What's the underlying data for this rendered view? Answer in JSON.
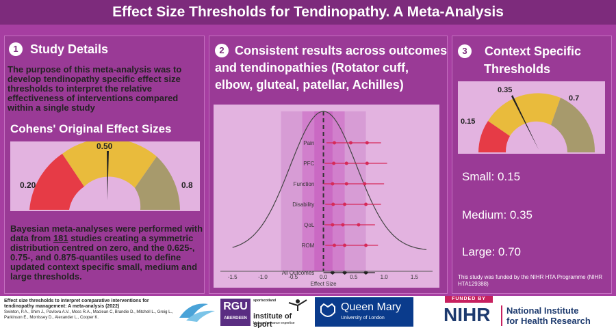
{
  "header": {
    "title": "Effect Size Thresholds for Tendinopathy. A Meta-Analysis"
  },
  "panel1": {
    "number": "1",
    "title": "Study Details",
    "intro": "The purpose of this meta-analysis was to develop tendinopathy specific effect size thresholds to interpret the relative effectiveness of interventions compared within a single study",
    "subtitle": "Cohens' Original Effect Sizes",
    "gauge": {
      "small": "0.20",
      "medium": "0.50",
      "large": "0.8",
      "needle_value": 0.5
    },
    "methods_part1": "Bayesian meta-analyses were performed with data from",
    "methods_count": "181",
    "methods_part2": "studies creating a symmetric distribution centred on zero, and the 0.625-, 0.75-, and 0.875-quantiles used to define updated context specific small, medium and large thresholds."
  },
  "panel2": {
    "number": "2",
    "title_line1": "Consistent results across outcomes",
    "title_line2": "and tendinopathies (Rotator cuff,",
    "title_line3": "elbow, gluteal, patellar, Achilles)"
  },
  "chart_data": {
    "type": "forest",
    "xlabel": "Effect Size",
    "xlim": [
      -1.7,
      1.8
    ],
    "xticks": [
      "-1.5",
      "-1.0",
      "-0.5",
      "0.0",
      "0.5",
      "1.0",
      "1.5"
    ],
    "shaded_bands": [
      [
        -0.7,
        0.7
      ],
      [
        -0.35,
        0.35
      ],
      [
        -0.15,
        0.15
      ]
    ],
    "threshold_line": 0,
    "rows": [
      {
        "label": "Pain",
        "points": [
          0.18,
          0.45,
          0.72
        ],
        "ci": [
          0.05,
          0.95
        ]
      },
      {
        "label": "PFC",
        "points": [
          0.17,
          0.38,
          0.72
        ],
        "ci": [
          0.02,
          1.05
        ]
      },
      {
        "label": "Function",
        "points": [
          0.15,
          0.38,
          0.68
        ],
        "ci": [
          0.0,
          1.0
        ]
      },
      {
        "label": "Disability",
        "points": [
          0.16,
          0.35,
          0.7
        ],
        "ci": [
          0.03,
          0.95
        ]
      },
      {
        "label": "QoL",
        "points": [
          0.15,
          0.32,
          0.58
        ],
        "ci": [
          0.02,
          0.85
        ]
      },
      {
        "label": "ROM",
        "points": [
          0.18,
          0.35,
          0.7
        ],
        "ci": [
          0.03,
          0.9
        ]
      },
      {
        "label": "All Outcomes",
        "points": [
          0.15,
          0.35,
          0.7
        ],
        "ci": [
          0.0,
          0.85
        ]
      }
    ]
  },
  "panel3": {
    "number": "3",
    "title_line1": "Context Specific",
    "title_line2": "Thresholds",
    "gauge": {
      "small": "0.15",
      "medium": "0.35",
      "large": "0.7",
      "needle_value": 0.35
    },
    "small": "Small: 0.15",
    "medium": "Medium: 0.35",
    "large": "Large: 0.70",
    "funding": "This study was funded by the NIHR HTA Programme (NIHR HTA129388)"
  },
  "footer": {
    "citation_title": "Effect size thresholds to interpret comparative interventions for tendinopathy management: A meta-analysis (2022)",
    "citation_authors": "Swinton, P.A., Shim J., Pavlova A.V., Moss R.A., Maclean C, Brandie D., Mitchell L., Greig L., Parkinson E., Morrissey D., Alexander L., Cooper K.",
    "logo_rgu_line1": "RGU",
    "logo_rgu_line2": "ABERDEEN",
    "logo_sport_line1": "sportscotland",
    "logo_sport_line2": "institute of sport",
    "logo_sport_line3": "high performance expertise",
    "logo_qm_line1": "Queen Mary",
    "logo_qm_line2": "University of London",
    "nihr_funded": "FUNDED BY",
    "nihr_abbr": "NIHR",
    "nihr_name_line1": "National Institute",
    "nihr_name_line2": "for Health Research"
  }
}
